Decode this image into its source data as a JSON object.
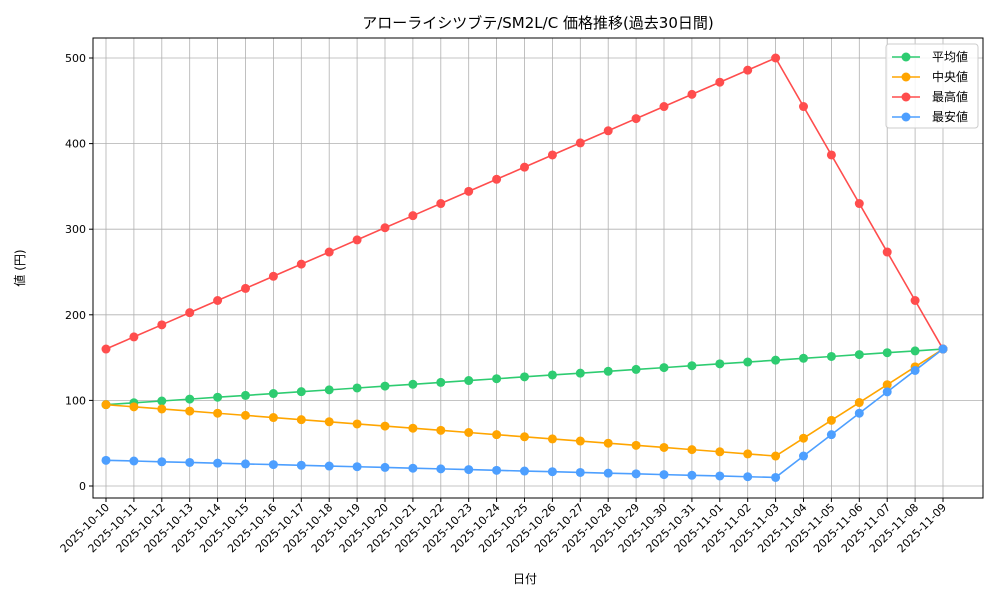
{
  "chart_data": {
    "type": "line",
    "title": "アローライシツブテ/SM2L/C 価格推移(過去30日間)",
    "xlabel": "日付",
    "ylabel": "値 (円)",
    "ylim": [
      -14,
      524
    ],
    "yticks": [
      0,
      100,
      200,
      300,
      400,
      500
    ],
    "grid": true,
    "legend_position": "top-right",
    "x": [
      "2025-10-10",
      "2025-10-11",
      "2025-10-12",
      "2025-10-13",
      "2025-10-14",
      "2025-10-15",
      "2025-10-16",
      "2025-10-17",
      "2025-10-18",
      "2025-10-19",
      "2025-10-20",
      "2025-10-21",
      "2025-10-22",
      "2025-10-23",
      "2025-10-24",
      "2025-10-25",
      "2025-10-26",
      "2025-10-27",
      "2025-10-28",
      "2025-10-29",
      "2025-10-30",
      "2025-10-31",
      "2025-11-01",
      "2025-11-02",
      "2025-11-03",
      "2025-11-04",
      "2025-11-05",
      "2025-11-06",
      "2025-11-07",
      "2025-11-08",
      "2025-11-09"
    ],
    "series": [
      {
        "name": "平均値",
        "color": "#2ecc71",
        "values": [
          95,
          97.2,
          99.3,
          101.5,
          103.7,
          105.8,
          108,
          110.2,
          112.3,
          114.5,
          116.7,
          118.8,
          121,
          123.2,
          125.3,
          127.5,
          129.7,
          131.8,
          134,
          136.2,
          138.3,
          140.5,
          142.7,
          144.8,
          147,
          149.2,
          151.3,
          153.5,
          155.7,
          157.8,
          160
        ]
      },
      {
        "name": "中央値",
        "color": "#ffa500",
        "values": [
          95,
          92.5,
          90,
          87.5,
          85,
          82.5,
          80,
          77.5,
          75,
          72.5,
          70,
          67.5,
          65,
          62.5,
          60,
          57.5,
          55,
          52.5,
          50,
          47.5,
          45,
          42.5,
          40,
          37.5,
          35,
          55.8,
          76.7,
          97.5,
          118.3,
          139.2,
          160
        ]
      },
      {
        "name": "最高値",
        "color": "#ff4d4d",
        "values": [
          160,
          174.2,
          188.3,
          202.5,
          216.7,
          230.8,
          245,
          259.2,
          273.3,
          287.5,
          301.7,
          315.8,
          330,
          344.2,
          358.3,
          372.5,
          386.7,
          400.8,
          415,
          429.2,
          443.3,
          457.5,
          471.7,
          485.8,
          500,
          443.3,
          386.7,
          330,
          273.3,
          216.7,
          160
        ]
      },
      {
        "name": "最安値",
        "color": "#4d9fff",
        "values": [
          30,
          29.2,
          28.3,
          27.5,
          26.7,
          25.8,
          25,
          24.2,
          23.3,
          22.5,
          21.7,
          20.8,
          20,
          19.2,
          18.3,
          17.5,
          16.7,
          15.8,
          15,
          14.2,
          13.3,
          12.5,
          11.7,
          10.8,
          10,
          35,
          60,
          85,
          110,
          135,
          160
        ]
      }
    ]
  }
}
